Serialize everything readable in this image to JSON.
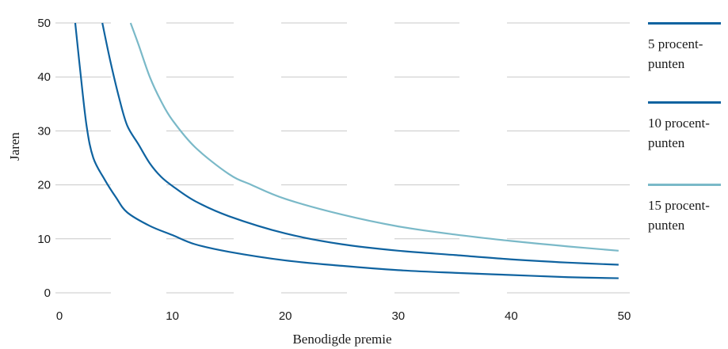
{
  "chart_data": {
    "type": "line",
    "xlabel": "Benodigde premie",
    "ylabel": "Jaren",
    "xlim": [
      0,
      50
    ],
    "ylim": [
      0,
      50
    ],
    "xticks": [
      "0",
      "10",
      "20",
      "30",
      "40",
      "50"
    ],
    "yticks": [
      "0",
      "10",
      "20",
      "30",
      "40",
      "50"
    ],
    "grid": "horizontal",
    "legend_position": "right",
    "series": [
      {
        "name": "5 procent-punten",
        "color": "#0f63a0",
        "x": [
          1.4,
          1.8,
          2.4,
          3,
          4,
          5,
          6,
          8,
          10,
          12,
          15,
          20,
          25,
          30,
          35,
          40,
          45,
          49.5
        ],
        "y": [
          50,
          42,
          31,
          25,
          21,
          17.7,
          14.9,
          12.4,
          10.7,
          9.0,
          7.6,
          6.0,
          5.0,
          4.2,
          3.7,
          3.3,
          2.9,
          2.7
        ]
      },
      {
        "name": "10 procent-punten",
        "color": "#0f63a0",
        "x": [
          3.8,
          4.5,
          5.3,
          6,
          7,
          8,
          9,
          10,
          12,
          15,
          20,
          25,
          30,
          35,
          40,
          45,
          49.5
        ],
        "y": [
          50,
          43,
          36,
          31,
          27.5,
          24,
          21.5,
          19.8,
          17,
          14.2,
          11,
          9.0,
          7.8,
          7.0,
          6.2,
          5.6,
          5.2
        ]
      },
      {
        "name": "15 procent-punten",
        "color": "#7ab9c8",
        "x": [
          6.3,
          7,
          8,
          9,
          10,
          12,
          15,
          17,
          20,
          25,
          30,
          35,
          40,
          45,
          49.5
        ],
        "y": [
          50,
          46,
          40,
          35.5,
          32,
          27,
          22,
          20,
          17.4,
          14.5,
          12.3,
          10.8,
          9.6,
          8.6,
          7.8
        ]
      }
    ]
  }
}
